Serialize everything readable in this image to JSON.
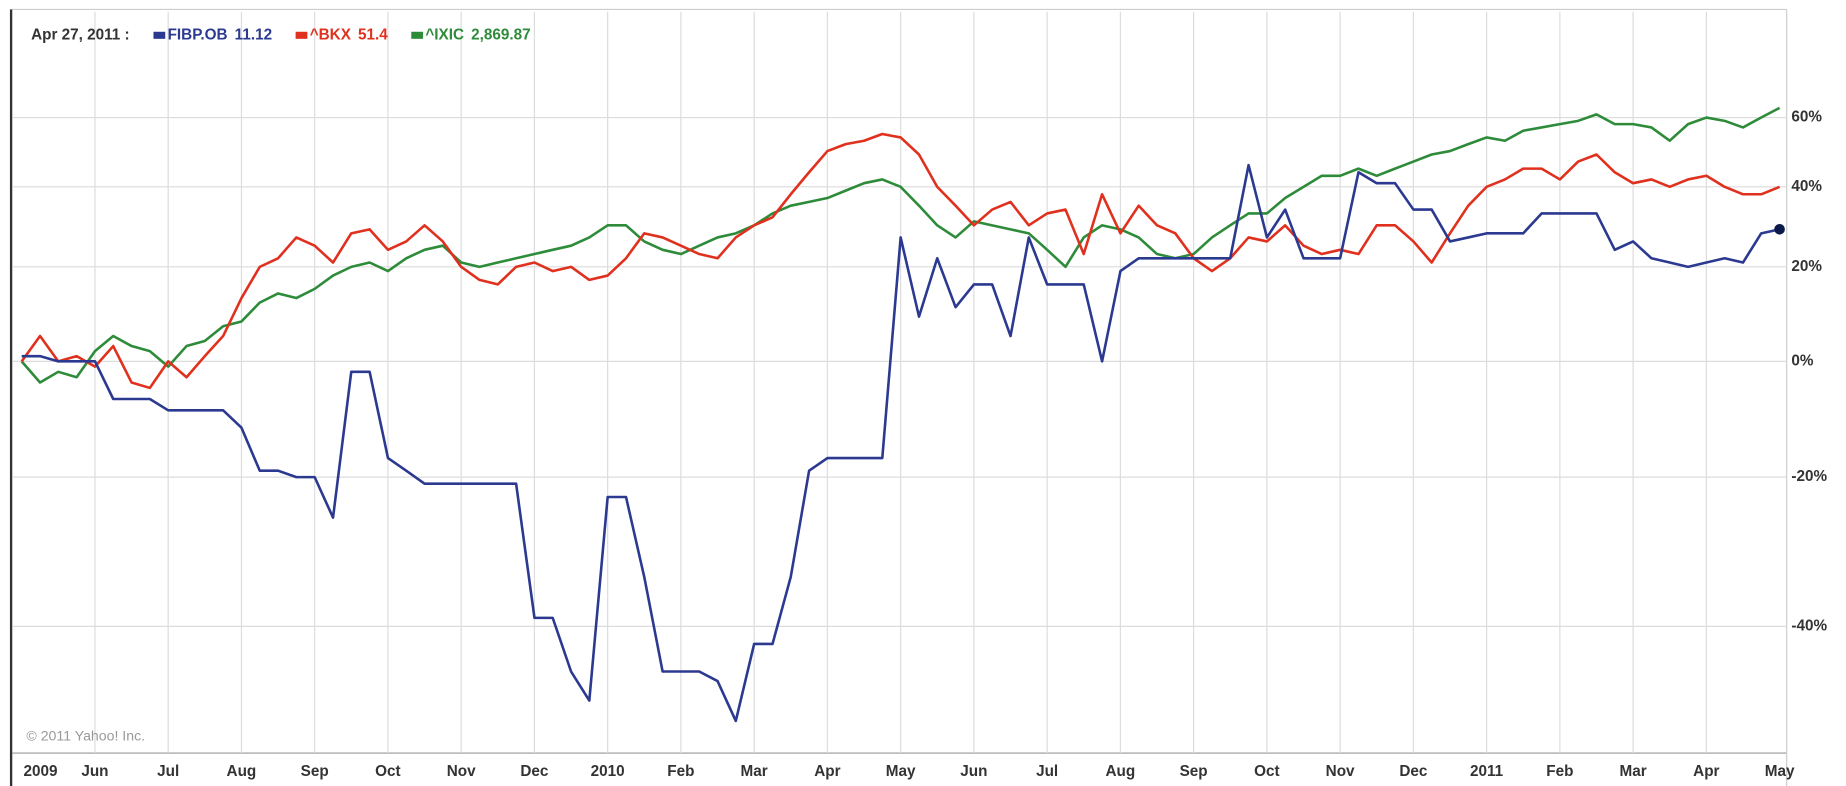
{
  "chart_data": {
    "type": "line",
    "date": "Apr 27, 2011 :",
    "credit": "© 2011 Yahoo! Inc.",
    "yscale": "log",
    "grid": true,
    "x": [
      "2009",
      null,
      null,
      null,
      "Jun",
      null,
      null,
      null,
      "Jul",
      null,
      null,
      null,
      "Aug",
      null,
      null,
      null,
      "Sep",
      null,
      null,
      null,
      "Oct",
      null,
      null,
      null,
      "Nov",
      null,
      null,
      null,
      "Dec",
      null,
      null,
      null,
      "2010",
      null,
      null,
      null,
      "Feb",
      null,
      null,
      null,
      "Mar",
      null,
      null,
      null,
      "Apr",
      null,
      null,
      null,
      "May",
      null,
      null,
      null,
      "Jun",
      null,
      null,
      null,
      "Jul",
      null,
      null,
      null,
      "Aug",
      null,
      null,
      null,
      "Sep",
      null,
      null,
      null,
      "Oct",
      null,
      null,
      null,
      "Nov",
      null,
      null,
      null,
      "Dec",
      null,
      null,
      null,
      "2011",
      null,
      null,
      null,
      "Feb",
      null,
      null,
      null,
      "Mar",
      null,
      null,
      null,
      "Apr",
      null,
      null,
      null,
      "May"
    ],
    "ylim": [
      -53,
      80
    ],
    "yticks": [
      {
        "value": -40,
        "label": "-40%"
      },
      {
        "value": -20,
        "label": "-20%"
      },
      {
        "value": 0,
        "label": "0%"
      },
      {
        "value": 20,
        "label": "20%"
      },
      {
        "value": 40,
        "label": "40%"
      },
      {
        "value": 60,
        "label": "60%"
      }
    ],
    "series": [
      {
        "name": "FIBP.OB",
        "quote": 11.12,
        "color": "#2b3990",
        "values": [
          1,
          1,
          0,
          0,
          0,
          -7,
          -7,
          -7,
          -9,
          -9,
          -9,
          -9,
          -12,
          -19,
          -19,
          -20,
          -20,
          -26,
          -2,
          -2,
          -17,
          -19,
          -21,
          -21,
          -21,
          -21,
          -21,
          -21,
          -39,
          -39,
          -45,
          -48,
          -23,
          -23,
          -34,
          -45,
          -45,
          -45,
          -46,
          -50,
          -42,
          -42,
          -34,
          -19,
          -17,
          -17,
          -17,
          -17,
          27,
          9,
          22,
          11,
          16,
          16,
          5,
          27,
          16,
          16,
          16,
          0,
          19,
          22,
          22,
          22,
          22,
          22,
          22,
          46,
          27,
          34,
          22,
          22,
          22,
          44,
          41,
          41,
          34,
          34,
          26,
          27,
          28,
          28,
          28,
          33,
          33,
          33,
          33,
          24,
          26,
          22,
          21,
          20,
          21,
          22,
          21,
          28,
          29
        ]
      },
      {
        "name": "^BKX",
        "quote": 51.4,
        "color": "#e0301e",
        "values": [
          0,
          5,
          0,
          1,
          -1,
          3,
          -4,
          -5,
          0,
          -3,
          1,
          5,
          13,
          20,
          22,
          27,
          25,
          21,
          28,
          29,
          24,
          26,
          30,
          26,
          20,
          17,
          16,
          20,
          21,
          19,
          20,
          17,
          18,
          22,
          28,
          27,
          25,
          23,
          22,
          27,
          30,
          32,
          38,
          44,
          50,
          52,
          53,
          55,
          54,
          49,
          40,
          35,
          30,
          34,
          36,
          30,
          33,
          34,
          23,
          38,
          28,
          35,
          30,
          28,
          22,
          19,
          22,
          27,
          26,
          30,
          25,
          23,
          24,
          23,
          30,
          30,
          26,
          21,
          28,
          35,
          40,
          42,
          45,
          45,
          42,
          47,
          49,
          44,
          41,
          42,
          40,
          42,
          43,
          40,
          38,
          38,
          40
        ]
      },
      {
        "name": "^IXIC",
        "quote": {
          "value": 2869.87,
          "label": "2,869.87"
        },
        "color": "#2e8b3a",
        "values": [
          0,
          -4,
          -2,
          -3,
          2,
          5,
          3,
          2,
          -1,
          3,
          4,
          7,
          8,
          12,
          14,
          13,
          15,
          18,
          20,
          21,
          19,
          22,
          24,
          25,
          21,
          20,
          21,
          22,
          23,
          24,
          25,
          27,
          30,
          30,
          26,
          24,
          23,
          25,
          27,
          28,
          30,
          33,
          35,
          36,
          37,
          39,
          41,
          42,
          40,
          35,
          30,
          27,
          31,
          30,
          29,
          28,
          24,
          20,
          27,
          30,
          29,
          27,
          23,
          22,
          23,
          27,
          30,
          33,
          33,
          37,
          40,
          43,
          43,
          45,
          43,
          45,
          47,
          49,
          50,
          52,
          54,
          53,
          56,
          57,
          58,
          59,
          61,
          58,
          58,
          57,
          53,
          58,
          60,
          59,
          57,
          60,
          63
        ]
      }
    ]
  }
}
